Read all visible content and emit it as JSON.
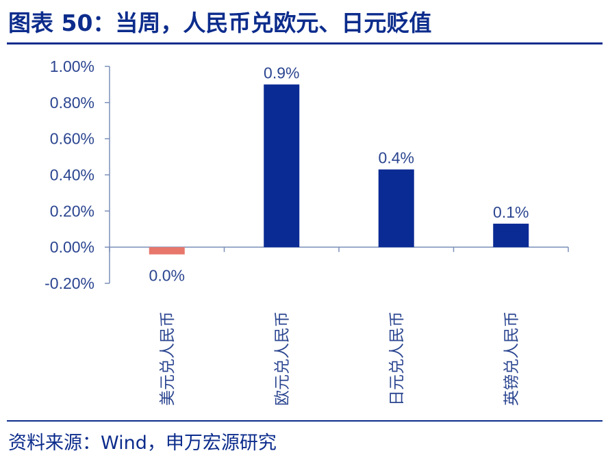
{
  "title": "图表 50：当周，人民币兑欧元、日元贬值",
  "source": "资料来源：Wind，申万宏源研究",
  "colors": {
    "accent": "#0c2c8c",
    "positive": "#0a2a94",
    "negative": "#e8776b"
  },
  "chart_data": {
    "type": "bar",
    "categories": [
      "美元兑人民币",
      "欧元兑人民币",
      "日元兑人民币",
      "英镑兑人民币"
    ],
    "values": [
      -0.04,
      0.9,
      0.43,
      0.13
    ],
    "data_labels": [
      "0.0%",
      "0.9%",
      "0.4%",
      "0.1%"
    ],
    "ylim": [
      -0.2,
      1.0
    ],
    "yticks": [
      1.0,
      0.8,
      0.6,
      0.4,
      0.2,
      0.0,
      -0.2
    ],
    "ytick_labels": [
      "1.00%",
      "0.80%",
      "0.60%",
      "0.40%",
      "0.20%",
      "0.00%",
      "-0.20%"
    ],
    "grid": false,
    "legend": "none"
  }
}
